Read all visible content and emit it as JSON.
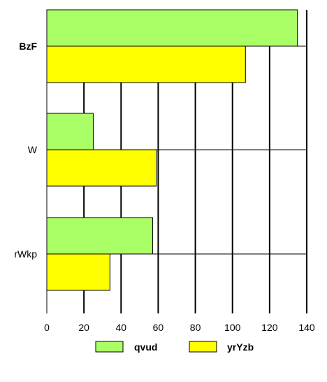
{
  "chart_data": {
    "type": "bar",
    "orientation": "horizontal",
    "categories": [
      "BzF",
      "W",
      "rWkp"
    ],
    "category_bold": [
      true,
      false,
      false
    ],
    "series": [
      {
        "name": "qvud",
        "values": [
          135,
          25,
          57
        ],
        "color": "#aaff66"
      },
      {
        "name": "yrYzb",
        "values": [
          107,
          59,
          34
        ],
        "color": "#ffff00"
      }
    ],
    "xlim": [
      0,
      140
    ],
    "xticks": [
      "0",
      "20",
      "40",
      "60",
      "80",
      "100",
      "120",
      "140"
    ],
    "grid": "vertical",
    "legend_position": "bottom"
  }
}
